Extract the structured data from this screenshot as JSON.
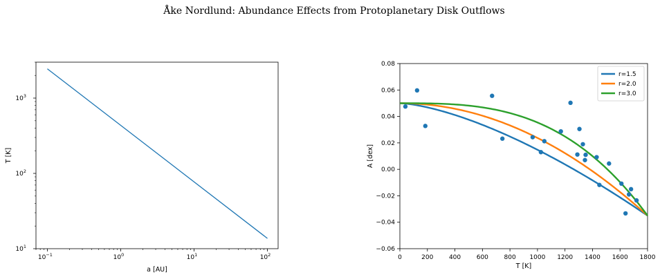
{
  "figure": {
    "title": "Åke Nordlund: Abundance Effects from Protoplanetary Disk Outflows"
  },
  "chart_data": [
    {
      "type": "line",
      "xlabel": "a [AU]",
      "ylabel": "T [K]",
      "xscale": "log",
      "yscale": "log",
      "xlim": [
        0.07,
        140
      ],
      "ylim": [
        10,
        3000
      ],
      "x_ticks": [
        {
          "value": 0.1,
          "base": "10",
          "exp": "−1"
        },
        {
          "value": 1,
          "base": "10",
          "exp": "0"
        },
        {
          "value": 10,
          "base": "10",
          "exp": "1"
        },
        {
          "value": 100,
          "base": "10",
          "exp": "2"
        }
      ],
      "y_ticks": [
        {
          "value": 10,
          "base": "10",
          "exp": "1"
        },
        {
          "value": 100,
          "base": "10",
          "exp": "2"
        },
        {
          "value": 1000,
          "base": "10",
          "exp": "3"
        }
      ],
      "series": [
        {
          "color": "#1f77b4",
          "x": [
            0.1,
            100
          ],
          "y": [
            2450,
            13.7
          ]
        }
      ]
    },
    {
      "type": "scatter",
      "xlabel": "T [K]",
      "ylabel": "A [dex]",
      "xlim": [
        0,
        1800
      ],
      "ylim": [
        -0.06,
        0.08
      ],
      "x_ticks": [
        "0",
        "200",
        "400",
        "600",
        "800",
        "1000",
        "1200",
        "1400",
        "1600",
        "1800"
      ],
      "x_tick_values": [
        0,
        200,
        400,
        600,
        800,
        1000,
        1200,
        1400,
        1600,
        1800
      ],
      "y_ticks": [
        "−0.06",
        "−0.04",
        "−0.02",
        "0.00",
        "0.02",
        "0.04",
        "0.06",
        "0.08"
      ],
      "y_tick_values": [
        -0.06,
        -0.04,
        -0.02,
        0.0,
        0.02,
        0.04,
        0.06,
        0.08
      ],
      "legend_position": "upper right",
      "points": {
        "color": "#1f77b4",
        "x": [
          40,
          125,
          185,
          670,
          745,
          965,
          1025,
          1050,
          1170,
          1240,
          1290,
          1305,
          1330,
          1345,
          1350,
          1430,
          1450,
          1520,
          1610,
          1640,
          1665,
          1680,
          1720
        ],
        "y": [
          0.0475,
          0.0597,
          0.0328,
          0.0556,
          0.0232,
          0.0243,
          0.013,
          0.0213,
          0.0287,
          0.0503,
          0.0112,
          0.0305,
          0.019,
          0.007,
          0.011,
          0.0092,
          -0.0118,
          0.0044,
          -0.0108,
          -0.0333,
          -0.019,
          -0.015,
          -0.0235
        ]
      },
      "series": [
        {
          "name": "r=1.5",
          "color": "#1f77b4",
          "y0": 0.05,
          "y1": -0.035,
          "exponent": 1.5
        },
        {
          "name": "r=2.0",
          "color": "#ff7f0e",
          "y0": 0.05,
          "y1": -0.035,
          "exponent": 2.0
        },
        {
          "name": "r=3.0",
          "color": "#2ca02c",
          "y0": 0.05,
          "y1": -0.035,
          "exponent": 3.0
        }
      ]
    }
  ]
}
